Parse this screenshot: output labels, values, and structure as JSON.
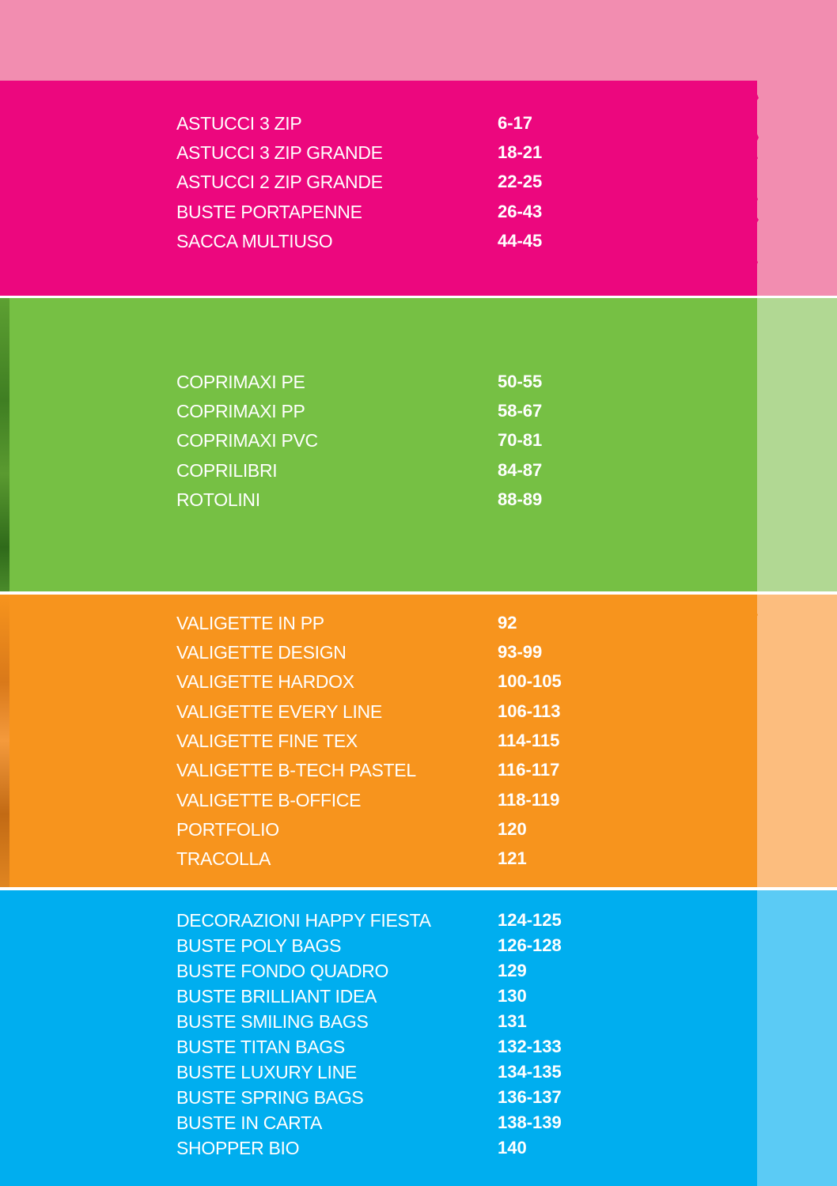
{
  "colors": {
    "pink_main": "#ec077e",
    "pink_tab": "#f28db0",
    "green_main": "#76c044",
    "green_tab": "#b1d893",
    "orange_main": "#f7941d",
    "orange_tab": "#fcbd7e",
    "blue_main": "#00aeef",
    "blue_tab": "#5bcbf5",
    "text": "#ffffff"
  },
  "sections": [
    {
      "id": "pink",
      "items": [
        {
          "name": "ASTUCCI 3 ZIP",
          "pages": "6-17"
        },
        {
          "name": "ASTUCCI 3 ZIP GRANDE",
          "pages": "18-21"
        },
        {
          "name": "ASTUCCI 2 ZIP GRANDE",
          "pages": "22-25"
        },
        {
          "name": "BUSTE PORTAPENNE",
          "pages": "26-43"
        },
        {
          "name": "SACCA MULTIUSO",
          "pages": "44-45"
        }
      ]
    },
    {
      "id": "green",
      "items": [
        {
          "name": "COPRIMAXI PE",
          "pages": "50-55"
        },
        {
          "name": "COPRIMAXI PP",
          "pages": "58-67"
        },
        {
          "name": "COPRIMAXI PVC",
          "pages": "70-81"
        },
        {
          "name": "COPRILIBRI",
          "pages": "84-87"
        },
        {
          "name": "ROTOLINI",
          "pages": "88-89"
        }
      ]
    },
    {
      "id": "orange",
      "items": [
        {
          "name": "VALIGETTE IN PP",
          "pages": "92"
        },
        {
          "name": "VALIGETTE DESIGN",
          "pages": "93-99"
        },
        {
          "name": "VALIGETTE HARDOX",
          "pages": "100-105"
        },
        {
          "name": "VALIGETTE EVERY LINE",
          "pages": "106-113"
        },
        {
          "name": "VALIGETTE FINE TEX",
          "pages": "114-115"
        },
        {
          "name": "VALIGETTE B-TECH PASTEL",
          "pages": "116-117"
        },
        {
          "name": "VALIGETTE B-OFFICE",
          "pages": "118-119"
        },
        {
          "name": "PORTFOLIO",
          "pages": "120"
        },
        {
          "name": "TRACOLLA",
          "pages": "121"
        }
      ]
    },
    {
      "id": "blue",
      "items": [
        {
          "name": "DECORAZIONI HAPPY FIESTA",
          "pages": "124-125"
        },
        {
          "name": "BUSTE POLY BAGS",
          "pages": "126-128"
        },
        {
          "name": "BUSTE FONDO QUADRO",
          "pages": "129"
        },
        {
          "name": "BUSTE BRILLIANT IDEA",
          "pages": "130"
        },
        {
          "name": "BUSTE SMILING BAGS",
          "pages": "131"
        },
        {
          "name": "BUSTE TITAN BAGS",
          "pages": "132-133"
        },
        {
          "name": "BUSTE LUXURY LINE",
          "pages": "134-135"
        },
        {
          "name": "BUSTE SPRING BAGS",
          "pages": "136-137"
        },
        {
          "name": "BUSTE IN CARTA",
          "pages": "138-139"
        },
        {
          "name": "SHOPPER BIO",
          "pages": "140"
        }
      ]
    }
  ]
}
